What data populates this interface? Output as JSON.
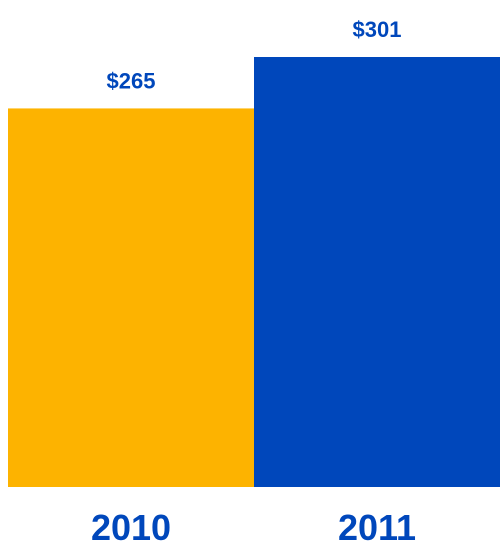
{
  "chart_data": {
    "type": "bar",
    "categories": [
      "2010",
      "2011"
    ],
    "values": [
      265,
      301
    ],
    "value_labels": [
      "$265",
      "$301"
    ],
    "ylim": [
      0,
      301
    ],
    "grid": false,
    "legend": "none",
    "title": "",
    "xlabel": "",
    "ylabel": ""
  },
  "colors": {
    "bars": [
      "#FDB300",
      "#0047BB"
    ],
    "labels": "#0047BB"
  }
}
